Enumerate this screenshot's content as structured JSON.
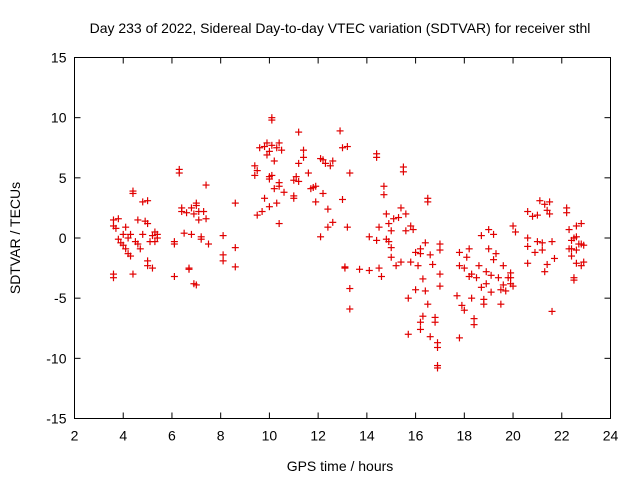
{
  "chart_data": {
    "type": "scatter",
    "title": "Day 233 of 2022, Sidereal Day-to-day VTEC variation (SDTVAR) for receiver sthl",
    "xlabel": "GPS time / hours",
    "ylabel": "SDTVAR / TECUs",
    "xlim": [
      2,
      24
    ],
    "ylim": [
      -15,
      15
    ],
    "xticks": [
      "2",
      "4",
      "6",
      "8",
      "10",
      "12",
      "14",
      "16",
      "18",
      "20",
      "22",
      "24"
    ],
    "yticks": [
      "15",
      "10",
      "5",
      "0",
      "-5",
      "-10",
      "-15"
    ],
    "grid": false,
    "marker": "+",
    "color": "#e00000",
    "series": [
      {
        "name": "SDTVAR",
        "points": [
          [
            3.6,
            1.5
          ],
          [
            3.6,
            1.0
          ],
          [
            3.7,
            0.8
          ],
          [
            3.8,
            1.6
          ],
          [
            3.8,
            -0.1
          ],
          [
            3.9,
            -0.4
          ],
          [
            3.6,
            -3.0
          ],
          [
            3.6,
            -3.3
          ],
          [
            4.0,
            0.3
          ],
          [
            4.0,
            -0.6
          ],
          [
            4.1,
            0.9
          ],
          [
            4.1,
            -0.9
          ],
          [
            4.2,
            -1.3
          ],
          [
            4.2,
            0.0
          ],
          [
            4.3,
            -1.5
          ],
          [
            4.3,
            0.3
          ],
          [
            4.4,
            3.9
          ],
          [
            4.4,
            3.7
          ],
          [
            4.4,
            -3.0
          ],
          [
            4.5,
            -0.3
          ],
          [
            4.6,
            1.5
          ],
          [
            4.6,
            -0.5
          ],
          [
            4.7,
            -0.9
          ],
          [
            4.8,
            0.3
          ],
          [
            4.8,
            3.0
          ],
          [
            4.9,
            1.4
          ],
          [
            5.0,
            3.1
          ],
          [
            5.0,
            1.2
          ],
          [
            5.0,
            -1.9
          ],
          [
            5.0,
            -2.3
          ],
          [
            5.1,
            -0.3
          ],
          [
            5.2,
            0.2
          ],
          [
            5.2,
            -2.5
          ],
          [
            5.3,
            0.5
          ],
          [
            5.3,
            -0.3
          ],
          [
            5.4,
            0.3
          ],
          [
            5.4,
            0.0
          ],
          [
            6.1,
            -0.3
          ],
          [
            6.1,
            -0.5
          ],
          [
            6.1,
            -3.2
          ],
          [
            6.3,
            5.7
          ],
          [
            6.3,
            5.4
          ],
          [
            6.4,
            2.5
          ],
          [
            6.4,
            2.2
          ],
          [
            6.5,
            0.4
          ],
          [
            6.6,
            2.1
          ],
          [
            6.7,
            -2.5
          ],
          [
            6.7,
            -2.6
          ],
          [
            6.8,
            0.3
          ],
          [
            6.8,
            2.5
          ],
          [
            6.9,
            2.0
          ],
          [
            6.9,
            -3.8
          ],
          [
            7.0,
            -3.9
          ],
          [
            7.0,
            2.9
          ],
          [
            7.0,
            2.7
          ],
          [
            7.1,
            1.5
          ],
          [
            7.1,
            2.2
          ],
          [
            7.2,
            0.1
          ],
          [
            7.2,
            -0.1
          ],
          [
            7.3,
            2.2
          ],
          [
            7.4,
            4.4
          ],
          [
            7.4,
            1.6
          ],
          [
            7.5,
            -0.5
          ],
          [
            8.1,
            0.2
          ],
          [
            8.1,
            -1.4
          ],
          [
            8.1,
            -1.9
          ],
          [
            8.6,
            2.9
          ],
          [
            8.6,
            -0.8
          ],
          [
            8.6,
            -2.4
          ],
          [
            9.4,
            6.0
          ],
          [
            9.4,
            5.2
          ],
          [
            9.5,
            1.9
          ],
          [
            9.5,
            5.6
          ],
          [
            9.6,
            7.5
          ],
          [
            9.7,
            2.2
          ],
          [
            9.8,
            3.3
          ],
          [
            9.8,
            7.6
          ],
          [
            9.9,
            7.9
          ],
          [
            9.9,
            6.9
          ],
          [
            10.0,
            7.2
          ],
          [
            10.0,
            5.1
          ],
          [
            10.0,
            4.9
          ],
          [
            10.0,
            2.6
          ],
          [
            10.1,
            10.0
          ],
          [
            10.1,
            9.8
          ],
          [
            10.1,
            7.7
          ],
          [
            10.1,
            5.2
          ],
          [
            10.2,
            4.1
          ],
          [
            10.2,
            6.4
          ],
          [
            10.3,
            7.5
          ],
          [
            10.3,
            2.9
          ],
          [
            10.4,
            7.9
          ],
          [
            10.4,
            4.6
          ],
          [
            10.4,
            4.3
          ],
          [
            10.4,
            1.2
          ],
          [
            10.5,
            7.3
          ],
          [
            10.6,
            3.8
          ],
          [
            11.0,
            3.5
          ],
          [
            11.0,
            3.3
          ],
          [
            11.0,
            4.8
          ],
          [
            11.1,
            5.1
          ],
          [
            11.2,
            8.8
          ],
          [
            11.2,
            4.7
          ],
          [
            11.2,
            6.2
          ],
          [
            11.4,
            6.7
          ],
          [
            11.4,
            7.3
          ],
          [
            11.6,
            5.4
          ],
          [
            11.7,
            4.1
          ],
          [
            11.8,
            4.2
          ],
          [
            11.9,
            3.0
          ],
          [
            11.9,
            4.3
          ],
          [
            12.1,
            6.6
          ],
          [
            12.1,
            0.1
          ],
          [
            12.2,
            3.7
          ],
          [
            12.2,
            6.5
          ],
          [
            12.3,
            6.2
          ],
          [
            12.4,
            2.4
          ],
          [
            12.4,
            0.9
          ],
          [
            12.5,
            6.0
          ],
          [
            12.6,
            6.4
          ],
          [
            12.6,
            1.3
          ],
          [
            12.9,
            8.9
          ],
          [
            13.0,
            7.5
          ],
          [
            13.0,
            3.2
          ],
          [
            13.1,
            -2.4
          ],
          [
            13.1,
            -2.5
          ],
          [
            13.2,
            7.6
          ],
          [
            13.2,
            0.9
          ],
          [
            13.3,
            5.4
          ],
          [
            13.3,
            -4.2
          ],
          [
            13.3,
            -5.9
          ],
          [
            13.7,
            -2.6
          ],
          [
            14.1,
            0.1
          ],
          [
            14.1,
            -2.7
          ],
          [
            14.4,
            -0.2
          ],
          [
            14.4,
            7.0
          ],
          [
            14.4,
            6.7
          ],
          [
            14.5,
            0.9
          ],
          [
            14.5,
            -2.5
          ],
          [
            14.6,
            -3.2
          ],
          [
            14.7,
            4.3
          ],
          [
            14.7,
            3.6
          ],
          [
            14.8,
            2.0
          ],
          [
            14.8,
            -0.1
          ],
          [
            14.9,
            -0.3
          ],
          [
            14.9,
            1.2
          ],
          [
            15.0,
            0.6
          ],
          [
            15.0,
            -0.8
          ],
          [
            15.0,
            -1.6
          ],
          [
            15.1,
            1.6
          ],
          [
            15.2,
            -2.3
          ],
          [
            15.3,
            1.7
          ],
          [
            15.4,
            2.5
          ],
          [
            15.4,
            -2.0
          ],
          [
            15.5,
            5.9
          ],
          [
            15.5,
            5.5
          ],
          [
            15.6,
            2.0
          ],
          [
            15.6,
            0.6
          ],
          [
            15.7,
            -8.0
          ],
          [
            15.7,
            -5.0
          ],
          [
            15.8,
            -2.0
          ],
          [
            15.8,
            1.0
          ],
          [
            15.9,
            0.7
          ],
          [
            16.0,
            -1.2
          ],
          [
            16.0,
            -4.3
          ],
          [
            16.1,
            -2.3
          ],
          [
            16.2,
            -0.9
          ],
          [
            16.2,
            -1.3
          ],
          [
            16.2,
            -7.0
          ],
          [
            16.2,
            -7.6
          ],
          [
            16.3,
            -3.4
          ],
          [
            16.3,
            -6.5
          ],
          [
            16.4,
            -0.4
          ],
          [
            16.4,
            -4.4
          ],
          [
            16.5,
            3.3
          ],
          [
            16.5,
            3.0
          ],
          [
            16.5,
            -5.5
          ],
          [
            16.6,
            -8.2
          ],
          [
            16.6,
            -1.4
          ],
          [
            16.7,
            -2.2
          ],
          [
            16.8,
            -7.0
          ],
          [
            16.8,
            -6.6
          ],
          [
            16.9,
            -9.1
          ],
          [
            16.9,
            -8.7
          ],
          [
            16.9,
            -10.6
          ],
          [
            16.9,
            -10.8
          ],
          [
            17.0,
            -0.5
          ],
          [
            17.0,
            -1.0
          ],
          [
            17.0,
            -3.0
          ],
          [
            17.0,
            -4.0
          ],
          [
            17.7,
            -4.8
          ],
          [
            17.8,
            -1.2
          ],
          [
            17.8,
            -8.3
          ],
          [
            17.8,
            -2.3
          ],
          [
            17.9,
            -5.6
          ],
          [
            18.0,
            -6.0
          ],
          [
            18.0,
            -2.5
          ],
          [
            18.1,
            -1.6
          ],
          [
            18.2,
            -0.9
          ],
          [
            18.2,
            -3.2
          ],
          [
            18.3,
            -3.0
          ],
          [
            18.3,
            -5.0
          ],
          [
            18.4,
            -6.7
          ],
          [
            18.4,
            -7.2
          ],
          [
            18.5,
            -3.3
          ],
          [
            18.6,
            -2.3
          ],
          [
            18.7,
            0.2
          ],
          [
            18.7,
            -4.1
          ],
          [
            18.8,
            -5.1
          ],
          [
            18.8,
            -5.5
          ],
          [
            18.9,
            -3.8
          ],
          [
            18.9,
            -2.8
          ],
          [
            19.0,
            0.7
          ],
          [
            19.0,
            -0.9
          ],
          [
            19.1,
            -4.5
          ],
          [
            19.1,
            -3.1
          ],
          [
            19.2,
            0.3
          ],
          [
            19.2,
            -1.8
          ],
          [
            19.3,
            -1.3
          ],
          [
            19.4,
            -3.3
          ],
          [
            19.5,
            -4.3
          ],
          [
            19.5,
            -5.5
          ],
          [
            19.6,
            -2.3
          ],
          [
            19.6,
            -3.9
          ],
          [
            19.7,
            -4.4
          ],
          [
            19.8,
            -3.3
          ],
          [
            19.9,
            -3.8
          ],
          [
            19.9,
            -2.9
          ],
          [
            19.9,
            -3.3
          ],
          [
            20.0,
            -4.0
          ],
          [
            20.0,
            1.0
          ],
          [
            20.1,
            0.5
          ],
          [
            20.6,
            2.2
          ],
          [
            20.6,
            0.0
          ],
          [
            20.6,
            -0.7
          ],
          [
            20.6,
            -2.1
          ],
          [
            20.8,
            1.8
          ],
          [
            20.9,
            -1.2
          ],
          [
            21.0,
            -0.3
          ],
          [
            21.0,
            1.9
          ],
          [
            21.1,
            3.1
          ],
          [
            21.2,
            -0.4
          ],
          [
            21.2,
            -1.0
          ],
          [
            21.3,
            2.8
          ],
          [
            21.3,
            -2.8
          ],
          [
            21.4,
            -2.2
          ],
          [
            21.4,
            2.3
          ],
          [
            21.5,
            2.0
          ],
          [
            21.5,
            3.0
          ],
          [
            21.6,
            -0.3
          ],
          [
            21.6,
            -6.1
          ],
          [
            21.7,
            -1.7
          ],
          [
            22.2,
            2.5
          ],
          [
            22.2,
            2.1
          ],
          [
            22.3,
            0.7
          ],
          [
            22.3,
            -0.9
          ],
          [
            22.4,
            -0.2
          ],
          [
            22.4,
            -0.9
          ],
          [
            22.4,
            -1.5
          ],
          [
            22.5,
            0.0
          ],
          [
            22.5,
            -3.3
          ],
          [
            22.5,
            -3.5
          ],
          [
            22.6,
            0.1
          ],
          [
            22.6,
            -2.1
          ],
          [
            22.6,
            -1.0
          ],
          [
            22.6,
            1.0
          ],
          [
            22.7,
            -0.5
          ],
          [
            22.8,
            -0.5
          ],
          [
            22.8,
            1.2
          ],
          [
            22.8,
            -2.3
          ],
          [
            22.9,
            -0.6
          ],
          [
            22.9,
            -2.0
          ]
        ]
      }
    ]
  }
}
